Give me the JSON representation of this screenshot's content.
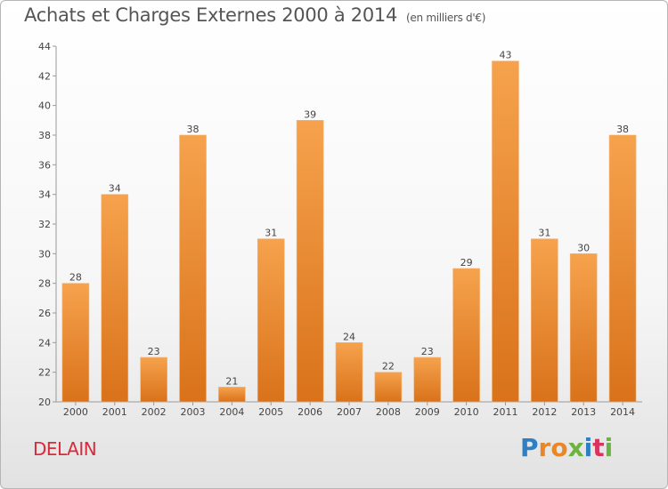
{
  "title": "Achats et Charges Externes 2000 à 2014",
  "subtitle": "(en milliers d'€)",
  "commune": "DELAIN",
  "logo": {
    "text": "Proxiti",
    "letters": [
      {
        "ch": "P",
        "color": "#2f7fc4"
      },
      {
        "ch": "r",
        "color": "#e8872a"
      },
      {
        "ch": "o",
        "color": "#e8872a"
      },
      {
        "ch": "x",
        "color": "#6cb33f"
      },
      {
        "ch": "i",
        "color": "#2f7fc4"
      },
      {
        "ch": "t",
        "color": "#d8345f"
      },
      {
        "ch": "i",
        "color": "#6cb33f"
      }
    ]
  },
  "colors": {
    "bar_light": "#f6a24d",
    "bar_dark": "#d9721a",
    "title": "#555555",
    "commune": "#d62b3a"
  },
  "chart_data": {
    "type": "bar",
    "title": "Achats et Charges Externes 2000 à 2014",
    "subtitle": "(en milliers d'€)",
    "categories": [
      "2000",
      "2001",
      "2002",
      "2003",
      "2004",
      "2005",
      "2006",
      "2007",
      "2008",
      "2009",
      "2010",
      "2011",
      "2012",
      "2013",
      "2014"
    ],
    "values": [
      28,
      34,
      23,
      38,
      21,
      31,
      39,
      24,
      22,
      23,
      29,
      43,
      31,
      30,
      38
    ],
    "ylim": [
      20,
      44
    ],
    "yticks": [
      20,
      22,
      24,
      26,
      28,
      30,
      32,
      34,
      36,
      38,
      40,
      42,
      44
    ],
    "grid": false,
    "data_labels": true
  }
}
